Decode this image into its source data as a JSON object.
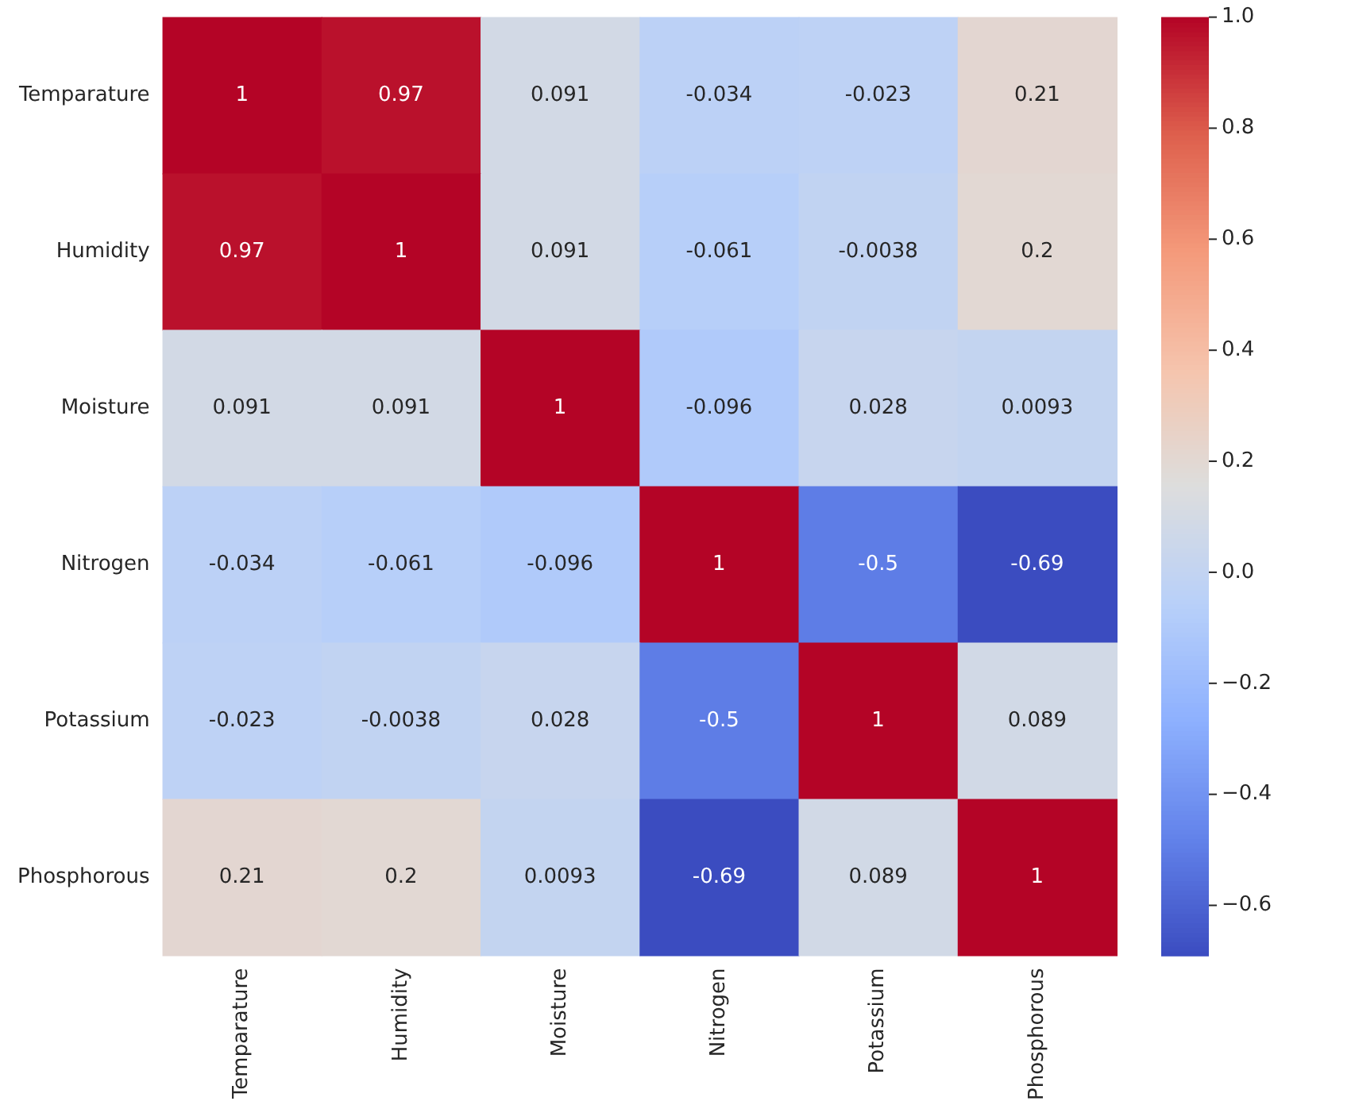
{
  "chart_data": {
    "type": "heatmap",
    "categories": [
      "Temparature",
      "Humidity",
      "Moisture",
      "Nitrogen",
      "Potassium",
      "Phosphorous"
    ],
    "y_categories": [
      "Temparature",
      "Humidity",
      "Moisture",
      "Nitrogen",
      "Potassium",
      "Phosphorous"
    ],
    "cells": [
      [
        1,
        0.97,
        0.091,
        -0.034,
        -0.023,
        0.21
      ],
      [
        0.97,
        1,
        0.091,
        -0.061,
        -0.0038,
        0.2
      ],
      [
        0.091,
        0.091,
        1,
        -0.096,
        0.028,
        0.0093
      ],
      [
        -0.034,
        -0.061,
        -0.096,
        1,
        -0.5,
        -0.69
      ],
      [
        -0.023,
        -0.0038,
        0.028,
        -0.5,
        1,
        0.089
      ],
      [
        0.21,
        0.2,
        0.0093,
        -0.69,
        0.089,
        1
      ]
    ],
    "clim": [
      -0.69,
      1
    ],
    "cticks": [
      -0.6,
      -0.4,
      -0.2,
      {
        "value": 0,
        "label": "0.0"
      },
      0.2,
      0.4,
      0.6,
      0.8,
      {
        "value": 1,
        "label": "1.0"
      }
    ],
    "data_labels": true
  }
}
